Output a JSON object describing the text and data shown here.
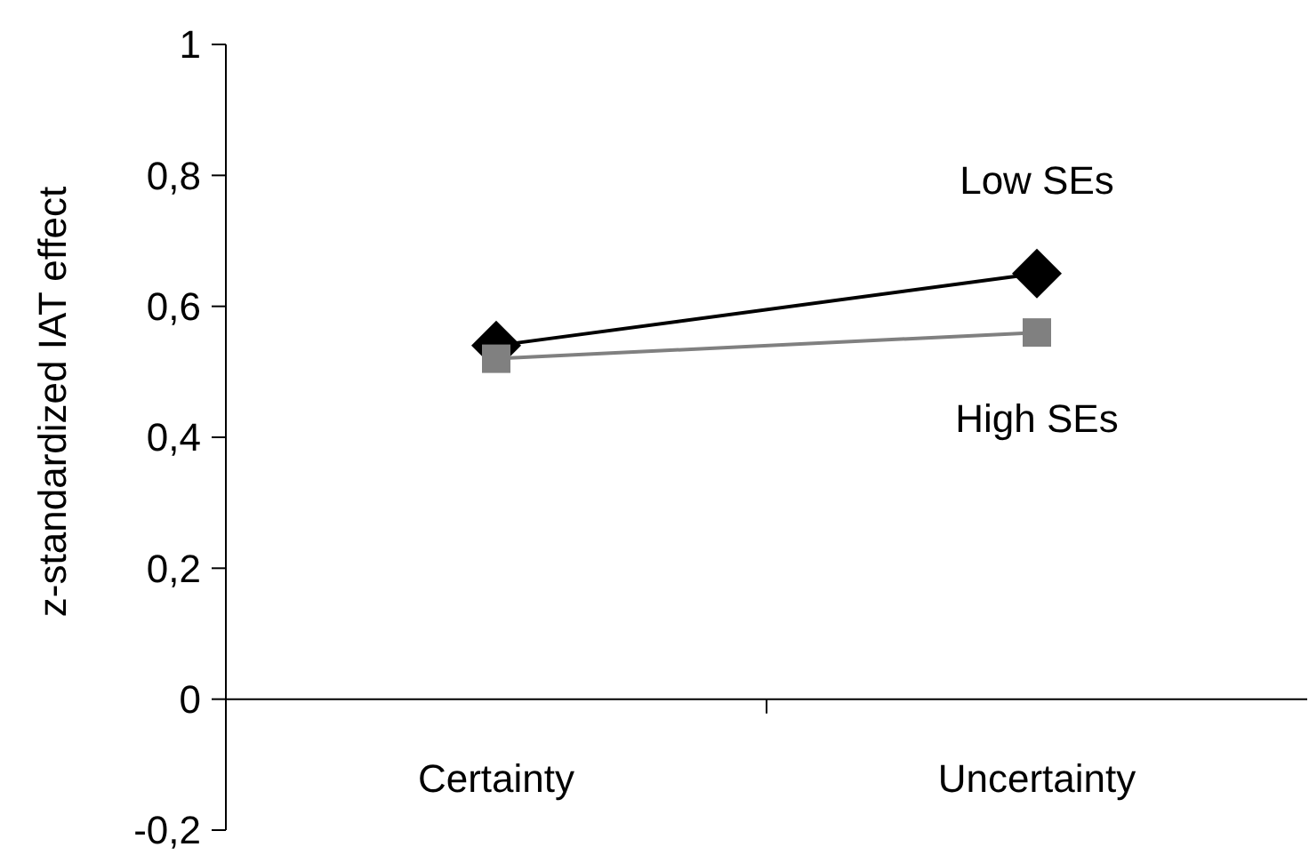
{
  "chart_data": {
    "type": "line",
    "ylabel": "z-standardized IAT effect",
    "categories": [
      "Certainty",
      "Uncertainty"
    ],
    "ylim": [
      -0.2,
      1
    ],
    "yticks": [
      {
        "value": -0.2,
        "label": "-0,2"
      },
      0,
      {
        "value": 0.2,
        "label": "0,2"
      },
      {
        "value": 0.4,
        "label": "0,4"
      },
      {
        "value": 0.6,
        "label": "0,6"
      },
      {
        "value": 0.8,
        "label": "0,8"
      },
      1
    ],
    "series": [
      {
        "name": "Low SEs",
        "color": "#000000",
        "marker": "diamond",
        "values": [
          0.54,
          0.65
        ]
      },
      {
        "name": "High SEs",
        "color": "#808080",
        "marker": "square",
        "values": [
          0.52,
          0.56
        ]
      }
    ],
    "grid": false
  }
}
